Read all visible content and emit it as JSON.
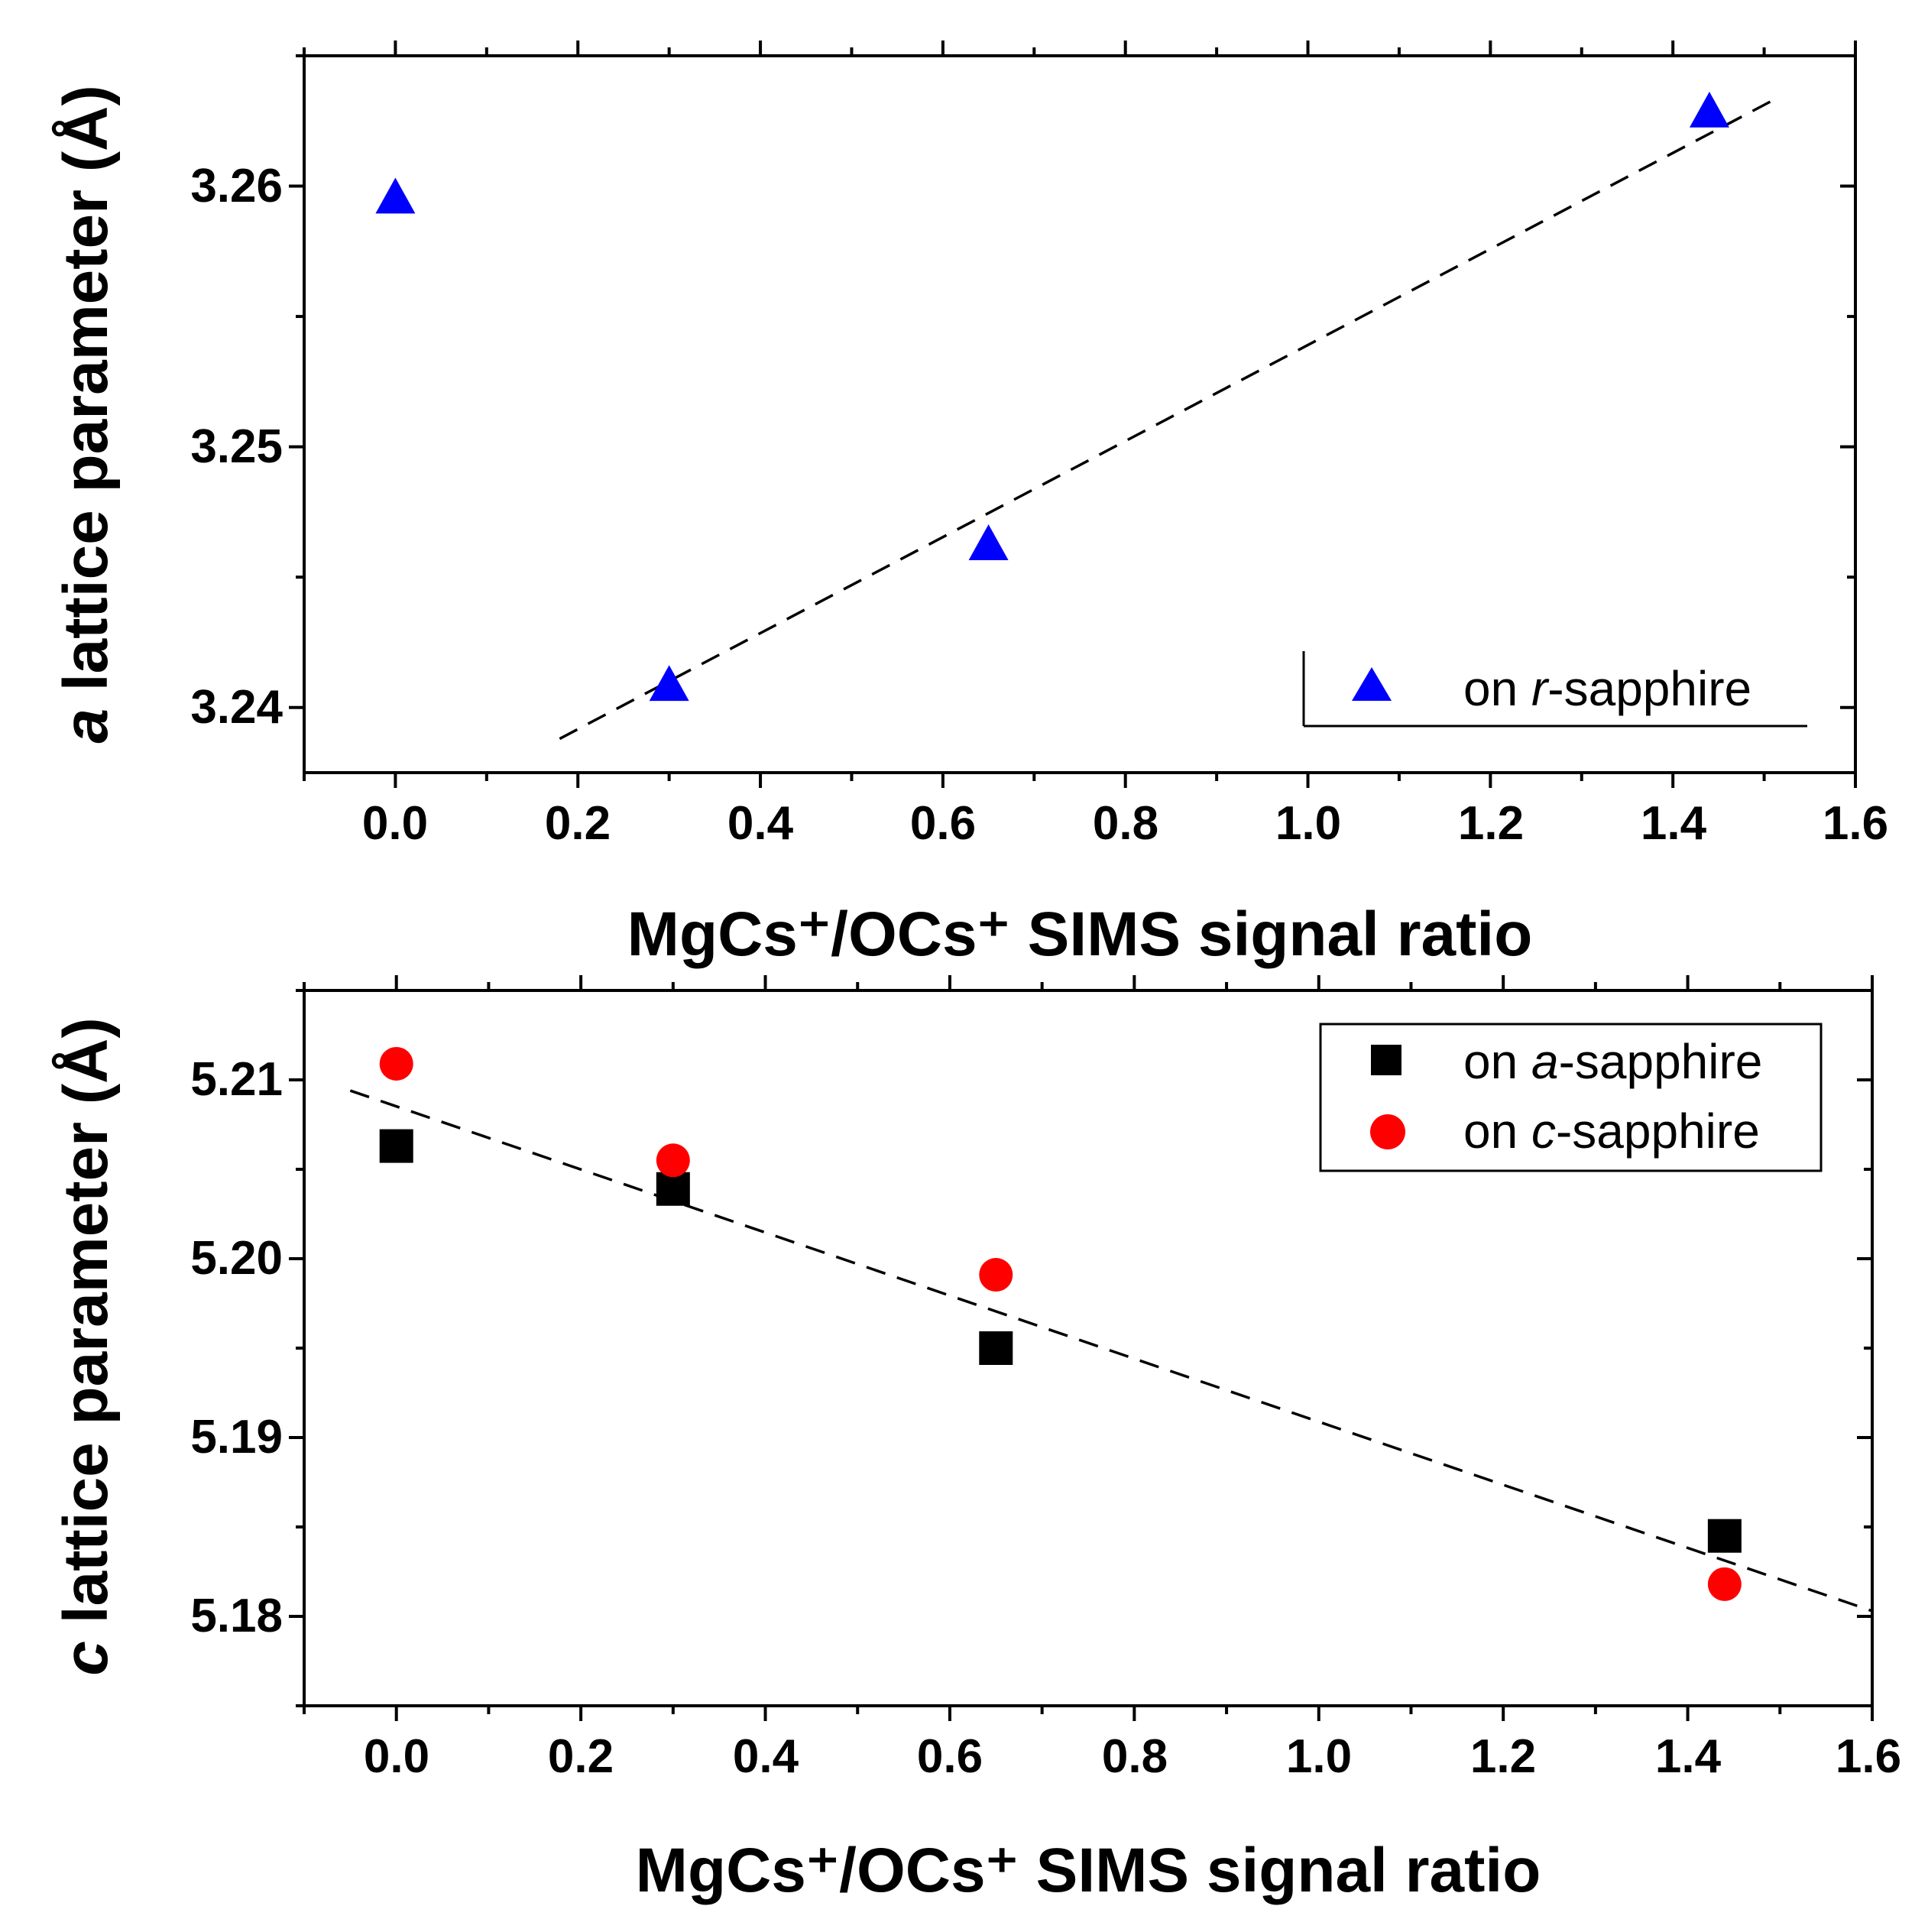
{
  "chart_data": [
    {
      "type": "scatter",
      "title": "",
      "xlabel": "MgCs⁺/OCs⁺ SIMS signal ratio",
      "ylabel": "a lattice parameter (Å)",
      "ylabel_parts": {
        "italic": "a",
        "rest": " lattice parameter (Å)"
      },
      "xlim": [
        -0.1,
        1.6
      ],
      "ylim": [
        3.2375,
        3.265
      ],
      "x_ticks": [
        "0.0",
        "0.2",
        "0.4",
        "0.6",
        "0.8",
        "1.0",
        "1.2",
        "1.4",
        "1.6"
      ],
      "y_ticks": [
        "3.24",
        "3.25",
        "3.26"
      ],
      "legend_position": "bottom-right",
      "series": [
        {
          "name": "on r-sapphire",
          "legend_prefix": "on ",
          "legend_italic": "r",
          "legend_suffix": "-sapphire",
          "marker": "triangle",
          "color": "#0000ff",
          "points": [
            {
              "x": 0.0,
              "y": 3.2595
            },
            {
              "x": 0.3,
              "y": 3.2408
            },
            {
              "x": 0.65,
              "y": 3.2462
            },
            {
              "x": 1.44,
              "y": 3.2628
            }
          ]
        }
      ],
      "fit_line": {
        "style": "dashed",
        "color": "#000000",
        "x": [
          0.18,
          1.51
        ],
        "y": [
          3.2388,
          3.2633
        ]
      }
    },
    {
      "type": "scatter",
      "title": "",
      "xlabel": "MgCs⁺/OCs⁺ SIMS signal ratio",
      "ylabel": "c lattice parameter (Å)",
      "ylabel_parts": {
        "italic": "c",
        "rest": " lattice parameter (Å)"
      },
      "xlim": [
        -0.1,
        1.6
      ],
      "ylim": [
        5.175,
        5.215
      ],
      "x_ticks": [
        "0.0",
        "0.2",
        "0.4",
        "0.6",
        "0.8",
        "1.0",
        "1.2",
        "1.4",
        "1.6"
      ],
      "y_ticks": [
        "5.18",
        "5.19",
        "5.20",
        "5.21"
      ],
      "legend_position": "top-right",
      "series": [
        {
          "name": "on a-sapphire",
          "legend_prefix": "on ",
          "legend_italic": "a",
          "legend_suffix": "-sapphire",
          "marker": "square",
          "color": "#000000",
          "points": [
            {
              "x": 0.0,
              "y": 5.2063
            },
            {
              "x": 0.3,
              "y": 5.2039
            },
            {
              "x": 0.65,
              "y": 5.195
            },
            {
              "x": 1.44,
              "y": 5.1845
            }
          ]
        },
        {
          "name": "on c-sapphire",
          "legend_prefix": "on ",
          "legend_italic": "c",
          "legend_suffix": "-sapphire",
          "marker": "circle",
          "color": "#ff0000",
          "points": [
            {
              "x": 0.0,
              "y": 5.2109
            },
            {
              "x": 0.3,
              "y": 5.2055
            },
            {
              "x": 0.65,
              "y": 5.1991
            },
            {
              "x": 1.44,
              "y": 5.1818
            }
          ]
        }
      ],
      "fit_line": {
        "style": "dashed",
        "color": "#000000",
        "x": [
          -0.05,
          1.6
        ],
        "y": [
          5.2094,
          5.1803
        ]
      }
    }
  ]
}
